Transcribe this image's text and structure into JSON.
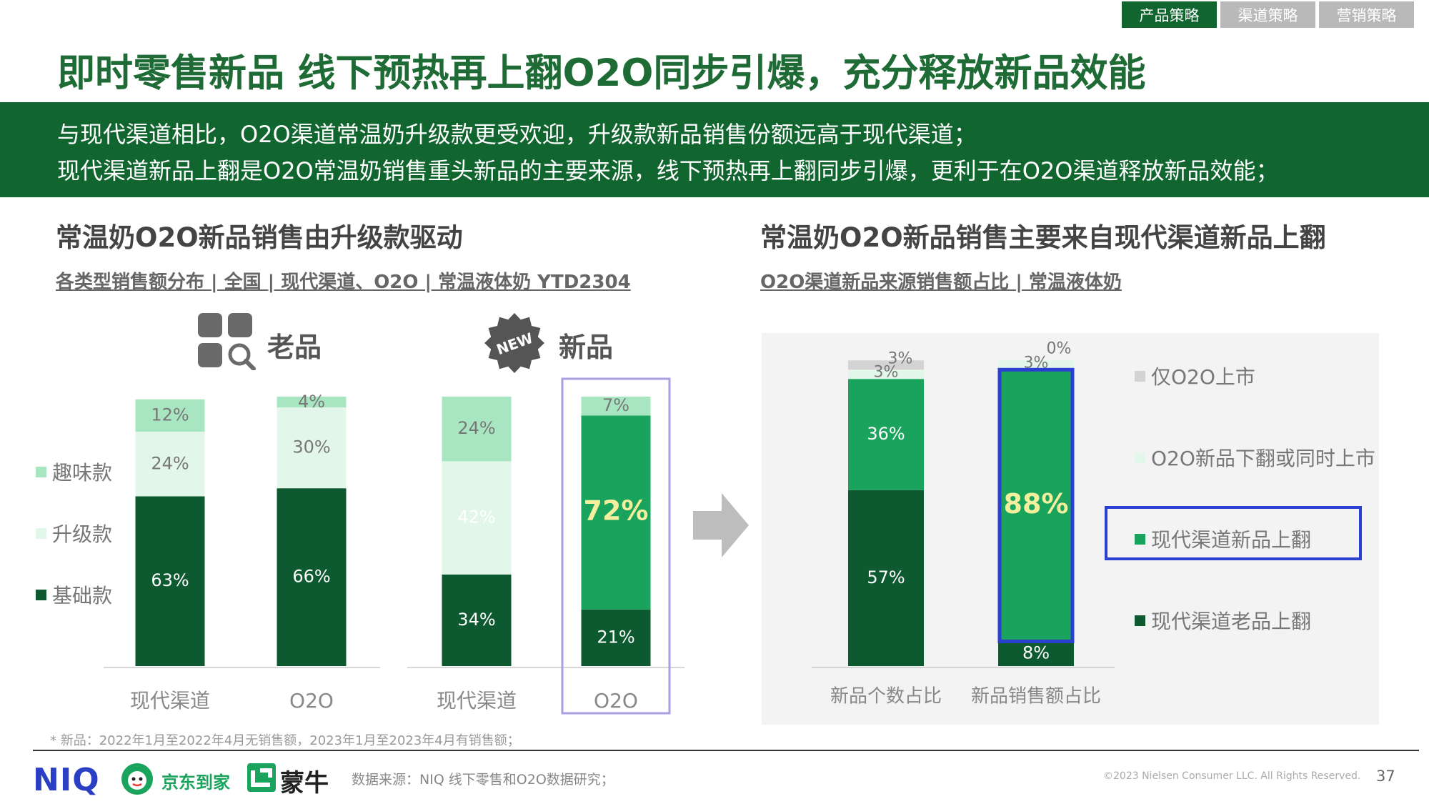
{
  "tabs": [
    {
      "label": "产品策略",
      "active": true
    },
    {
      "label": "渠道策略",
      "active": false
    },
    {
      "label": "营销策略",
      "active": false
    }
  ],
  "title": "即时零售新品 线下预热再上翻O2O同步引爆，充分释放新品效能",
  "banner": {
    "line1": "与现代渠道相比，O2O渠道常温奶升级款更受欢迎，升级款新品销售份额远高于现代渠道；",
    "line2": "现代渠道新品上翻是O2O常温奶销售重头新品的主要来源，线下预热再上翻同步引爆，更利于在O2O渠道释放新品效能；"
  },
  "left_section": {
    "heading": "常温奶O2O新品销售由升级款驱动",
    "subheading": "各类型销售额分布 | 全国 | 现代渠道、O2O | 常温液体奶 YTD2304",
    "group_old": "老品",
    "group_new": "新品",
    "new_badge": "NEW"
  },
  "right_section": {
    "heading": "常温奶O2O新品销售主要来自现代渠道新品上翻",
    "subheading": "O2O渠道新品来源销售额占比 | 常温液体奶"
  },
  "colors": {
    "dark_green": "#0e5a30",
    "mid_green": "#1aa35c",
    "light_green": "#a8e6c2",
    "pale_green": "#e3f6ea",
    "gray": "#d3d3d3",
    "highlight_blue": "#2b3fd0",
    "highlight_purple": "#a99ee0",
    "accent_yellow": "#f3ef9c"
  },
  "chart_data": [
    {
      "type": "bar",
      "stacked": true,
      "categories": [
        "现代渠道",
        "O2O",
        "现代渠道",
        "O2O"
      ],
      "category_groups": [
        "老品",
        "老品",
        "新品",
        "新品"
      ],
      "series": [
        {
          "name": "基础款",
          "values": [
            63,
            66,
            34,
            21
          ]
        },
        {
          "name": "升级款",
          "values": [
            24,
            30,
            42,
            72
          ]
        },
        {
          "name": "趣味款",
          "values": [
            12,
            4,
            24,
            7
          ]
        }
      ],
      "labels": [
        [
          "63%",
          "66%",
          "34%",
          "21%"
        ],
        [
          "24%",
          "30%",
          "42%",
          "72%"
        ],
        [
          "12%",
          "4%",
          "24%",
          "7%"
        ]
      ],
      "ylim": [
        0,
        100
      ],
      "legend": "left",
      "highlight": "新品 O2O"
    },
    {
      "type": "bar",
      "stacked": true,
      "categories": [
        "新品个数占比",
        "新品销售额占比"
      ],
      "series": [
        {
          "name": "现代渠道老品上翻",
          "values": [
            57,
            8
          ]
        },
        {
          "name": "现代渠道新品上翻",
          "values": [
            36,
            88
          ]
        },
        {
          "name": "O2O新品下翻或同时上市",
          "values": [
            3,
            3
          ]
        },
        {
          "name": "仅O2O上市",
          "values": [
            3,
            0
          ]
        }
      ],
      "labels": [
        [
          "57%",
          "8%"
        ],
        [
          "36%",
          "88%"
        ],
        [
          "3%",
          "3%"
        ],
        [
          "3%",
          "0%"
        ]
      ],
      "ylim": [
        0,
        100
      ],
      "legend": "right",
      "highlight": "新品销售额占比"
    }
  ],
  "footnote": "* 新品：2022年1月至2022年4月无销售额，2023年1月至2023年4月有销售额；",
  "logos": {
    "niq": "NIQ",
    "jd": "京东到家",
    "mengniu": "蒙牛"
  },
  "source": "数据来源：NIQ 线下零售和O2O数据研究；",
  "copyright": "©2023 Nielsen Consumer LLC. All Rights Reserved.",
  "page_number": "37"
}
